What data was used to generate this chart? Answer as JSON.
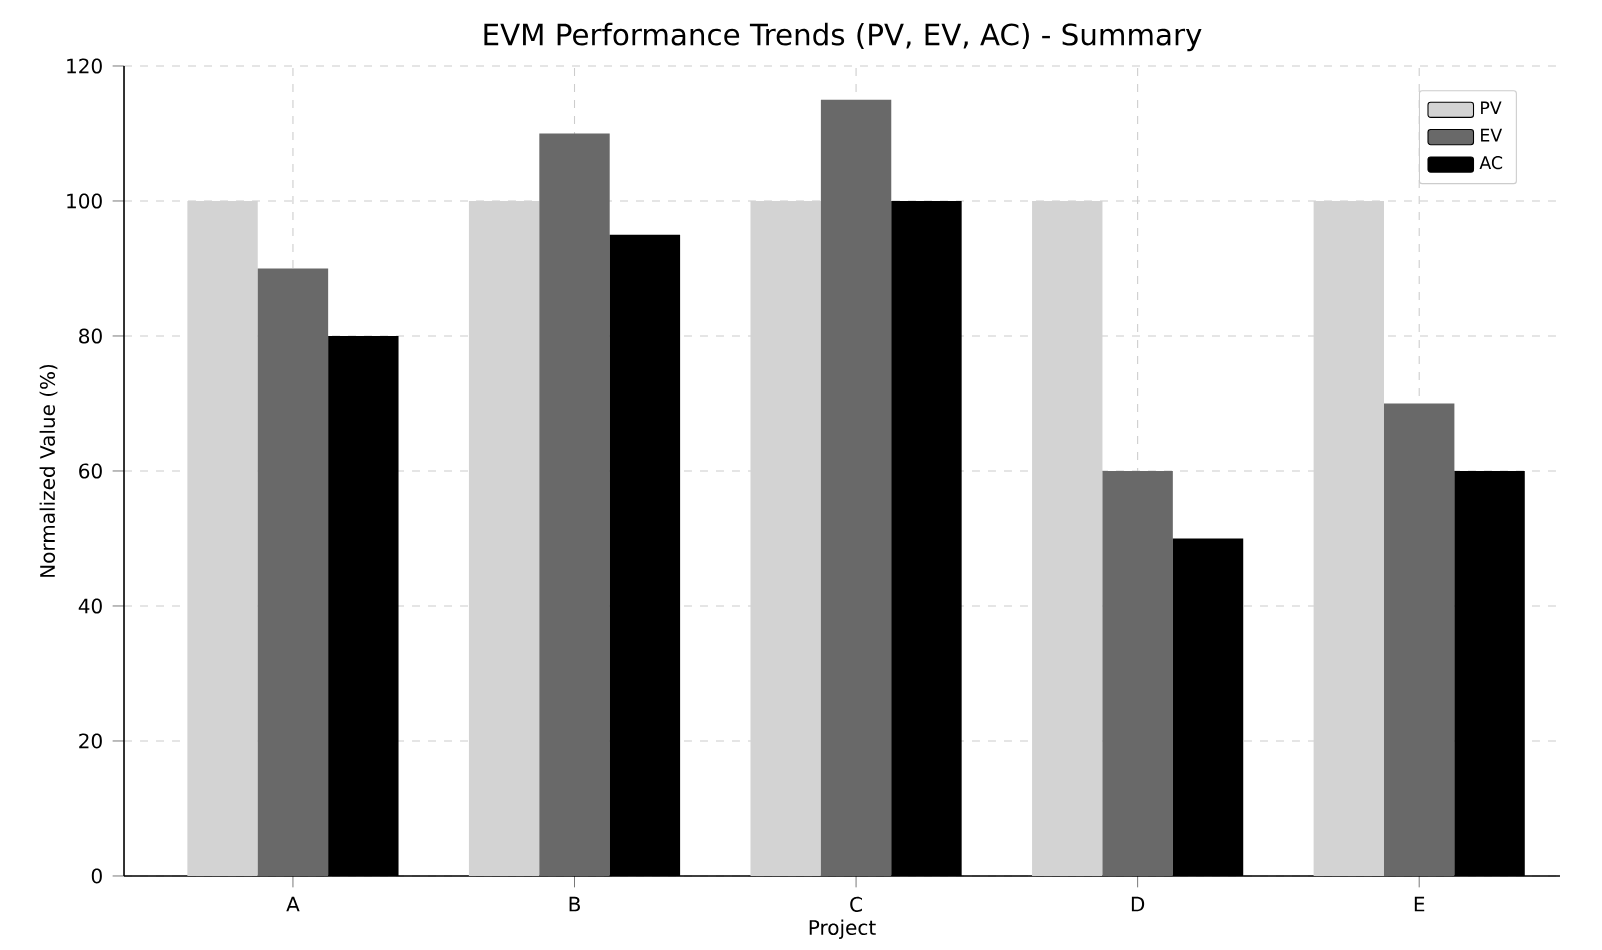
{
  "chart_data": {
    "type": "bar",
    "title": "EVM Performance Trends (PV, EV, AC) - Summary",
    "xlabel": "Project",
    "ylabel": "Normalized Value (%)",
    "categories": [
      "A",
      "B",
      "C",
      "D",
      "E"
    ],
    "series": [
      {
        "name": "PV",
        "color": "#d3d3d3",
        "values": [
          100,
          100,
          100,
          100,
          100
        ]
      },
      {
        "name": "EV",
        "color": "#696969",
        "values": [
          90,
          110,
          115,
          60,
          70
        ]
      },
      {
        "name": "AC",
        "color": "#000000",
        "values": [
          80,
          95,
          100,
          50,
          60
        ]
      }
    ],
    "ylim": [
      0,
      120
    ],
    "yticks": [
      0,
      20,
      40,
      60,
      80,
      100,
      120
    ],
    "grid": true,
    "legend": "top right"
  }
}
